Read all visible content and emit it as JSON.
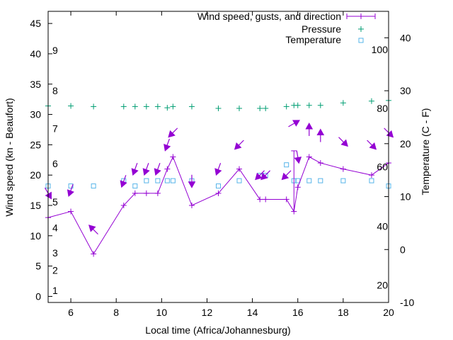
{
  "chart_data": {
    "type": "line",
    "xlabel": "Local time (Africa/Johannesburg)",
    "ylabel": "Wind speed (kn - Beaufort)",
    "y2label": "Temperature (C - F)",
    "xlim": [
      5,
      20
    ],
    "ylim": [
      -1,
      47
    ],
    "y2lim": [
      -10,
      45
    ],
    "xticks": [
      6,
      8,
      10,
      12,
      14,
      16,
      18,
      20
    ],
    "xtick_labels": [
      "6",
      "8",
      "10",
      "12",
      "14",
      "16",
      "18",
      "20"
    ],
    "yticks": [
      0,
      5,
      10,
      15,
      20,
      25,
      30,
      35,
      40,
      45
    ],
    "ytick_labels": [
      "0",
      "5",
      "10",
      "15",
      "20",
      "25",
      "30",
      "35",
      "40",
      "45"
    ],
    "y2ticks": [
      -10,
      0,
      10,
      20,
      30,
      40
    ],
    "y2tick_labels": [
      "-10",
      "0",
      "10",
      "20",
      "30",
      "40"
    ],
    "beaufort_labels": [
      {
        "label": "1",
        "y": 1.0
      },
      {
        "label": "2",
        "y": 4.3
      },
      {
        "label": "3",
        "y": 7.2
      },
      {
        "label": "4",
        "y": 11.3
      },
      {
        "label": "5",
        "y": 15.6
      },
      {
        "label": "6",
        "y": 21.9
      },
      {
        "label": "7",
        "y": 27.7
      },
      {
        "label": "8",
        "y": 33.9
      },
      {
        "label": "9",
        "y": 40.6
      }
    ],
    "fahrenheit_labels": [
      {
        "label": "20",
        "t": -6.7
      },
      {
        "label": "40",
        "t": 4.4
      },
      {
        "label": "60",
        "t": 15.6
      },
      {
        "label": "80",
        "t": 26.7
      },
      {
        "label": "100",
        "t": 37.8
      }
    ],
    "legend_position": "top-right",
    "series": [
      {
        "name": "Wind speed, gusts, and direction",
        "color": "#9400d3",
        "marker": "plus",
        "x": [
          5.0,
          6.0,
          7.0,
          8.33,
          8.83,
          9.33,
          9.83,
          10.25,
          10.5,
          11.33,
          12.5,
          13.42,
          14.33,
          14.58,
          15.5,
          15.83,
          16.0,
          16.5,
          17.0,
          18.0,
          19.25,
          20.0
        ],
        "y": [
          13,
          14,
          7,
          15,
          17,
          17,
          17,
          21,
          23,
          15,
          17,
          21,
          16,
          16,
          16,
          14,
          18,
          23,
          22,
          21,
          20,
          22
        ],
        "gusts": [
          {
            "x": 15.83,
            "y": 24
          }
        ],
        "direction_arrows": [
          {
            "x": 5.0,
            "y": 17.0,
            "angle": 60
          },
          {
            "x": 6.0,
            "y": 17.5,
            "angle": 110
          },
          {
            "x": 7.0,
            "y": 11.0,
            "angle": 225
          },
          {
            "x": 8.33,
            "y": 19.0,
            "angle": 110
          },
          {
            "x": 8.83,
            "y": 21.0,
            "angle": 110
          },
          {
            "x": 9.33,
            "y": 21.0,
            "angle": 110
          },
          {
            "x": 9.83,
            "y": 21.0,
            "angle": 110
          },
          {
            "x": 10.25,
            "y": 25.0,
            "angle": 110
          },
          {
            "x": 10.5,
            "y": 27.0,
            "angle": 135
          },
          {
            "x": 11.33,
            "y": 19.0,
            "angle": 90
          },
          {
            "x": 12.5,
            "y": 21.0,
            "angle": 110
          },
          {
            "x": 13.42,
            "y": 25.0,
            "angle": 135
          },
          {
            "x": 14.33,
            "y": 20.0,
            "angle": 135
          },
          {
            "x": 14.58,
            "y": 20.0,
            "angle": 135
          },
          {
            "x": 15.5,
            "y": 20.0,
            "angle": 135
          },
          {
            "x": 15.83,
            "y": 28.5,
            "angle": 330
          },
          {
            "x": 16.0,
            "y": 23.0,
            "angle": 80
          },
          {
            "x": 16.5,
            "y": 27.5,
            "angle": 270
          },
          {
            "x": 17.0,
            "y": 26.5,
            "angle": 270
          },
          {
            "x": 18.0,
            "y": 25.5,
            "angle": 45
          },
          {
            "x": 19.25,
            "y": 25.0,
            "angle": 45
          },
          {
            "x": 20.0,
            "y": 27.0,
            "angle": 45
          }
        ]
      },
      {
        "name": "Pressure",
        "color": "#009e73",
        "marker": "plus",
        "x": [
          5.0,
          6.0,
          7.0,
          8.33,
          8.83,
          9.33,
          9.83,
          10.25,
          10.5,
          11.33,
          12.5,
          13.42,
          14.33,
          14.58,
          15.5,
          15.83,
          16.0,
          16.5,
          17.0,
          18.0,
          19.25,
          20.0
        ],
        "y": [
          31.4,
          31.4,
          31.3,
          31.3,
          31.3,
          31.3,
          31.3,
          31.1,
          31.3,
          31.3,
          31.0,
          31.0,
          31.0,
          31.0,
          31.3,
          31.5,
          31.5,
          31.5,
          31.5,
          31.9,
          32.2,
          32.3
        ]
      },
      {
        "name": "Temperature",
        "color": "#56b4e9",
        "marker": "open-square",
        "x": [
          5.0,
          6.0,
          7.0,
          8.33,
          8.83,
          9.33,
          9.83,
          10.25,
          10.5,
          11.33,
          12.5,
          13.42,
          14.33,
          14.58,
          15.5,
          15.83,
          16.0,
          16.5,
          17.0,
          18.0,
          19.25,
          20.0
        ],
        "y": [
          12,
          12,
          12,
          13,
          12,
          13,
          13,
          13,
          13,
          13,
          12,
          13,
          14,
          14,
          16,
          13,
          13,
          13,
          13,
          13,
          13,
          12
        ],
        "axis": "y2"
      }
    ]
  }
}
